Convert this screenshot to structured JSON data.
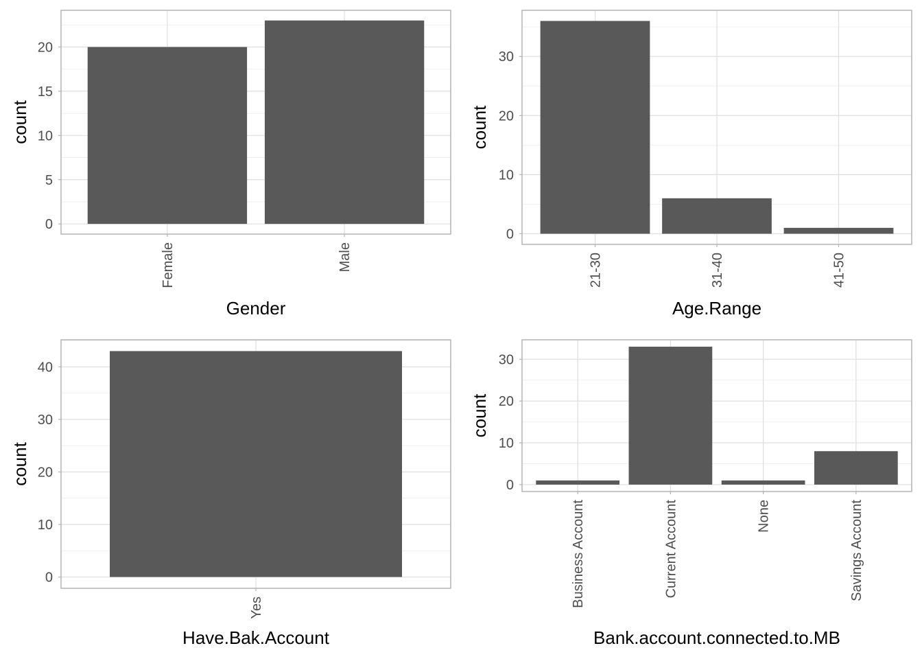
{
  "colors": {
    "bar": "#595959",
    "panel_border": "#b3b3b3",
    "grid_major": "#dedede",
    "grid_minor": "#efefef",
    "tick_text": "#4d4d4d",
    "title_text": "#000000"
  },
  "chart_data": [
    {
      "type": "bar",
      "xlabel": "Gender",
      "ylabel": "count",
      "categories": [
        "Female",
        "Male"
      ],
      "values": [
        20,
        23
      ],
      "yticks": [
        0,
        5,
        10,
        15,
        20
      ],
      "ylim": [
        0,
        24.15
      ],
      "grid": true,
      "legend": "none"
    },
    {
      "type": "bar",
      "xlabel": "Age.Range",
      "ylabel": "count",
      "categories": [
        "21-30",
        "31-40",
        "41-50"
      ],
      "values": [
        36,
        6,
        1
      ],
      "yticks": [
        0,
        10,
        20,
        30
      ],
      "ylim": [
        0,
        37.8
      ],
      "grid": true,
      "legend": "none"
    },
    {
      "type": "bar",
      "xlabel": "Have.Bak.Account",
      "ylabel": "count",
      "categories": [
        "Yes"
      ],
      "values": [
        43
      ],
      "yticks": [
        0,
        10,
        20,
        30,
        40
      ],
      "ylim": [
        0,
        45.15
      ],
      "grid": true,
      "legend": "none"
    },
    {
      "type": "bar",
      "xlabel": "Bank.account.connected.to.MB",
      "ylabel": "count",
      "categories": [
        "Business Account",
        "Current Account",
        "None",
        "Savings Account"
      ],
      "values": [
        1,
        33,
        1,
        8
      ],
      "yticks": [
        0,
        10,
        20,
        30
      ],
      "ylim": [
        0,
        34.65
      ],
      "grid": true,
      "legend": "none"
    }
  ]
}
